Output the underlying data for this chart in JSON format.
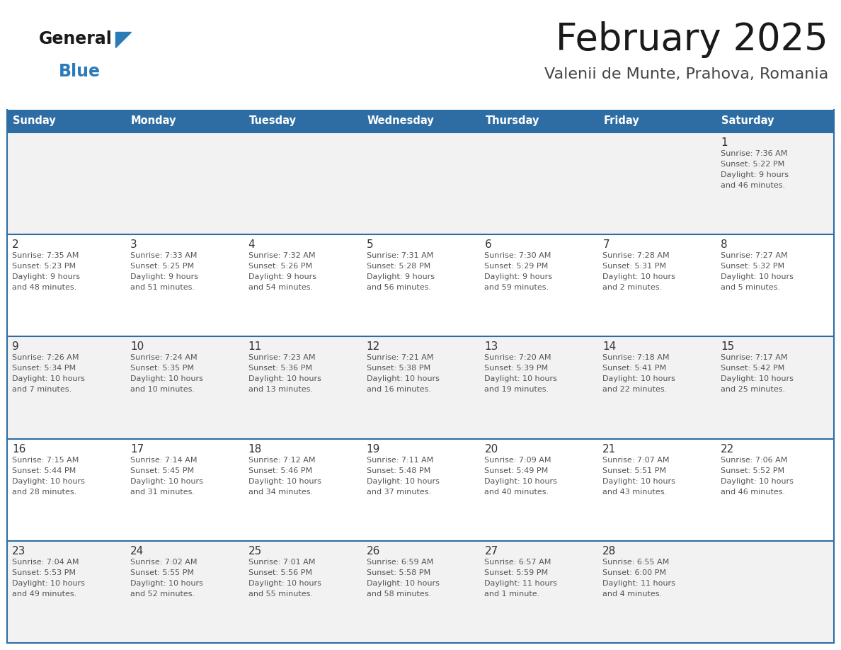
{
  "title": "February 2025",
  "subtitle": "Valenii de Munte, Prahova, Romania",
  "header_bg": "#2E6DA4",
  "header_text": "#FFFFFF",
  "day_names": [
    "Sunday",
    "Monday",
    "Tuesday",
    "Wednesday",
    "Thursday",
    "Friday",
    "Saturday"
  ],
  "row_bg_even": "#F2F2F2",
  "row_bg_odd": "#FFFFFF",
  "cell_border_color": "#2E6DA4",
  "text_color": "#555555",
  "day_num_color": "#333333",
  "logo_general_color": "#1a1a1a",
  "logo_blue_color": "#2B7BB9",
  "calendar": [
    [
      null,
      null,
      null,
      null,
      null,
      null,
      {
        "day": 1,
        "sunrise": "7:36 AM",
        "sunset": "5:22 PM",
        "daylight": "9 hours\nand 46 minutes."
      }
    ],
    [
      {
        "day": 2,
        "sunrise": "7:35 AM",
        "sunset": "5:23 PM",
        "daylight": "9 hours\nand 48 minutes."
      },
      {
        "day": 3,
        "sunrise": "7:33 AM",
        "sunset": "5:25 PM",
        "daylight": "9 hours\nand 51 minutes."
      },
      {
        "day": 4,
        "sunrise": "7:32 AM",
        "sunset": "5:26 PM",
        "daylight": "9 hours\nand 54 minutes."
      },
      {
        "day": 5,
        "sunrise": "7:31 AM",
        "sunset": "5:28 PM",
        "daylight": "9 hours\nand 56 minutes."
      },
      {
        "day": 6,
        "sunrise": "7:30 AM",
        "sunset": "5:29 PM",
        "daylight": "9 hours\nand 59 minutes."
      },
      {
        "day": 7,
        "sunrise": "7:28 AM",
        "sunset": "5:31 PM",
        "daylight": "10 hours\nand 2 minutes."
      },
      {
        "day": 8,
        "sunrise": "7:27 AM",
        "sunset": "5:32 PM",
        "daylight": "10 hours\nand 5 minutes."
      }
    ],
    [
      {
        "day": 9,
        "sunrise": "7:26 AM",
        "sunset": "5:34 PM",
        "daylight": "10 hours\nand 7 minutes."
      },
      {
        "day": 10,
        "sunrise": "7:24 AM",
        "sunset": "5:35 PM",
        "daylight": "10 hours\nand 10 minutes."
      },
      {
        "day": 11,
        "sunrise": "7:23 AM",
        "sunset": "5:36 PM",
        "daylight": "10 hours\nand 13 minutes."
      },
      {
        "day": 12,
        "sunrise": "7:21 AM",
        "sunset": "5:38 PM",
        "daylight": "10 hours\nand 16 minutes."
      },
      {
        "day": 13,
        "sunrise": "7:20 AM",
        "sunset": "5:39 PM",
        "daylight": "10 hours\nand 19 minutes."
      },
      {
        "day": 14,
        "sunrise": "7:18 AM",
        "sunset": "5:41 PM",
        "daylight": "10 hours\nand 22 minutes."
      },
      {
        "day": 15,
        "sunrise": "7:17 AM",
        "sunset": "5:42 PM",
        "daylight": "10 hours\nand 25 minutes."
      }
    ],
    [
      {
        "day": 16,
        "sunrise": "7:15 AM",
        "sunset": "5:44 PM",
        "daylight": "10 hours\nand 28 minutes."
      },
      {
        "day": 17,
        "sunrise": "7:14 AM",
        "sunset": "5:45 PM",
        "daylight": "10 hours\nand 31 minutes."
      },
      {
        "day": 18,
        "sunrise": "7:12 AM",
        "sunset": "5:46 PM",
        "daylight": "10 hours\nand 34 minutes."
      },
      {
        "day": 19,
        "sunrise": "7:11 AM",
        "sunset": "5:48 PM",
        "daylight": "10 hours\nand 37 minutes."
      },
      {
        "day": 20,
        "sunrise": "7:09 AM",
        "sunset": "5:49 PM",
        "daylight": "10 hours\nand 40 minutes."
      },
      {
        "day": 21,
        "sunrise": "7:07 AM",
        "sunset": "5:51 PM",
        "daylight": "10 hours\nand 43 minutes."
      },
      {
        "day": 22,
        "sunrise": "7:06 AM",
        "sunset": "5:52 PM",
        "daylight": "10 hours\nand 46 minutes."
      }
    ],
    [
      {
        "day": 23,
        "sunrise": "7:04 AM",
        "sunset": "5:53 PM",
        "daylight": "10 hours\nand 49 minutes."
      },
      {
        "day": 24,
        "sunrise": "7:02 AM",
        "sunset": "5:55 PM",
        "daylight": "10 hours\nand 52 minutes."
      },
      {
        "day": 25,
        "sunrise": "7:01 AM",
        "sunset": "5:56 PM",
        "daylight": "10 hours\nand 55 minutes."
      },
      {
        "day": 26,
        "sunrise": "6:59 AM",
        "sunset": "5:58 PM",
        "daylight": "10 hours\nand 58 minutes."
      },
      {
        "day": 27,
        "sunrise": "6:57 AM",
        "sunset": "5:59 PM",
        "daylight": "11 hours\nand 1 minute."
      },
      {
        "day": 28,
        "sunrise": "6:55 AM",
        "sunset": "6:00 PM",
        "daylight": "11 hours\nand 4 minutes."
      },
      null
    ]
  ]
}
